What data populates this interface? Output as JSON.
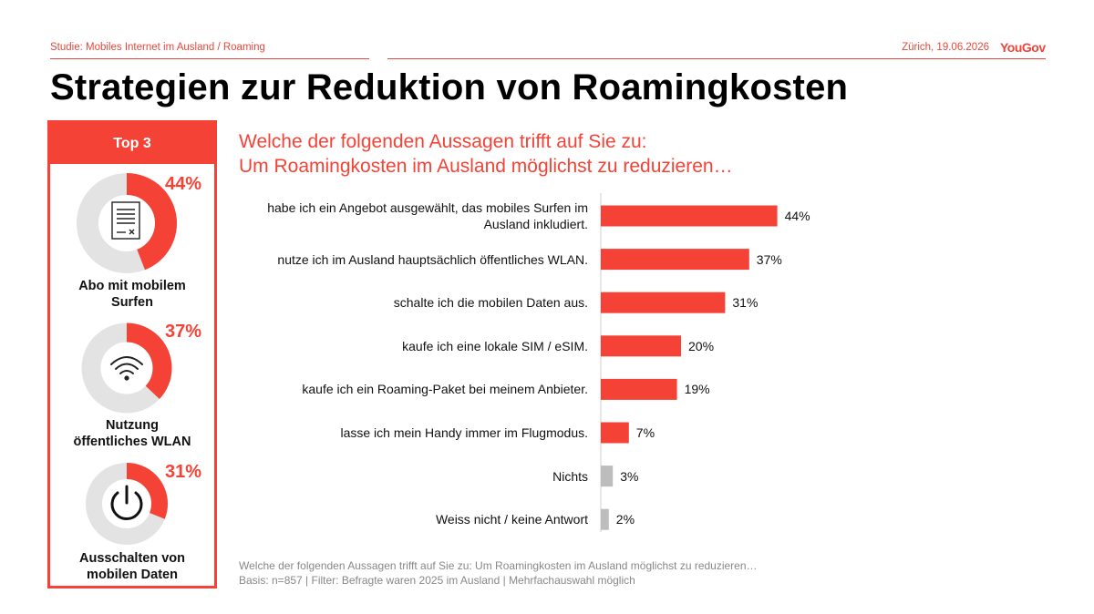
{
  "header": {
    "study": "Studie: Mobiles Internet im Ausland / Roaming",
    "date": "Zürich, 19.06.2026",
    "brand": "YouGov",
    "title": "Strategien zur Reduktion von Roamingkosten"
  },
  "colors": {
    "accent": "#f44336",
    "muted": "#bdbdbd",
    "track": "#e3e3e3"
  },
  "top3": {
    "heading": "Top 3",
    "items": [
      {
        "value": "44%",
        "percent": 44,
        "label": "Abo mit mobilem\nSurfen",
        "icon": "contract-document-icon"
      },
      {
        "value": "37%",
        "percent": 37,
        "label": "Nutzung\nöffentliches WLAN",
        "icon": "wifi-icon"
      },
      {
        "value": "31%",
        "percent": 31,
        "label": "Ausschalten von\nmobilen Daten",
        "icon": "power-icon"
      }
    ]
  },
  "question": {
    "line1": "Welche der folgenden Aussagen trifft auf Sie zu:",
    "line2": "Um Roamingkosten im Ausland möglichst zu reduzieren…"
  },
  "chart_data": {
    "type": "bar",
    "orientation": "horizontal",
    "title": "Welche der folgenden Aussagen trifft auf Sie zu: Um Roamingkosten im Ausland möglichst zu reduzieren…",
    "categories": [
      "habe ich ein Angebot ausgewählt, das mobiles Surfen im Ausland inkludiert.",
      "nutze ich im Ausland hauptsächlich öffentliches WLAN.",
      "schalte ich die mobilen Daten aus.",
      "kaufe ich eine lokale SIM / eSIM.",
      "kaufe ich ein Roaming-Paket bei meinem Anbieter.",
      "lasse ich mein Handy immer im Flugmodus.",
      "Nichts",
      "Weiss nicht / keine Antwort"
    ],
    "values": [
      44,
      37,
      31,
      20,
      19,
      7,
      3,
      2
    ],
    "value_labels": [
      "44%",
      "37%",
      "31%",
      "20%",
      "19%",
      "7%",
      "3%",
      "2%"
    ],
    "bar_colors": [
      "#f44336",
      "#f44336",
      "#f44336",
      "#f44336",
      "#f44336",
      "#f44336",
      "#bdbdbd",
      "#bdbdbd"
    ],
    "grid": false,
    "legend": "none"
  },
  "footnote": {
    "line1": "Welche der folgenden Aussagen trifft auf Sie zu: Um Roamingkosten im Ausland möglichst zu reduzieren…",
    "line2": "Basis: n=857 | Filter: Befragte waren 2025 im Ausland | Mehrfachauswahl möglich"
  }
}
